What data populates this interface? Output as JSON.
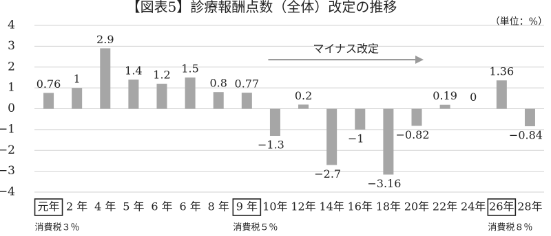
{
  "chart_data": {
    "type": "bar",
    "title": "【図表5】診療報酬点数（全体）改定の推移",
    "unit": "（単位：%）",
    "ylim": [
      -4,
      4
    ],
    "yticks": [
      4,
      3,
      2,
      1,
      0,
      -1,
      -2,
      -3,
      -4
    ],
    "ytick_labels": [
      "4",
      "3",
      "2",
      "1",
      "0",
      "−1",
      "−2",
      "−3",
      "−4"
    ],
    "grid": true,
    "bar_color": "#a6a6a6",
    "categories": [
      "元年",
      "2 年",
      "4 年",
      "5 年",
      "6 年",
      "6 年",
      "8 年",
      "9 年",
      "10年",
      "12年",
      "14年",
      "16年",
      "18年",
      "20年",
      "22年",
      "24年",
      "26年",
      "28年"
    ],
    "values": [
      0.76,
      1,
      2.9,
      1.4,
      1.2,
      1.5,
      0.8,
      0.77,
      -1.3,
      0.2,
      -2.7,
      -1,
      -3.16,
      -0.82,
      0.19,
      0,
      1.36,
      -0.84
    ],
    "value_labels": [
      "0.76",
      "1",
      "2.9",
      "1.4",
      "1.2",
      "1.5",
      "0.8",
      "0.77",
      "−1.3",
      "0.2",
      "−2.7",
      "−1",
      "−3.16",
      "−0.82",
      "0.19",
      "0",
      "1.36",
      "−0.84"
    ],
    "boxed_categories": [
      0,
      7,
      16
    ],
    "tax_notes": [
      {
        "text": "消費税３％",
        "category_index": 0
      },
      {
        "text": "消費税５％",
        "category_index": 7
      },
      {
        "text": "消費税８％",
        "category_index": 16
      }
    ],
    "annotation": {
      "text": "マイナス改定",
      "from_category": 8,
      "to_category": 13
    }
  }
}
